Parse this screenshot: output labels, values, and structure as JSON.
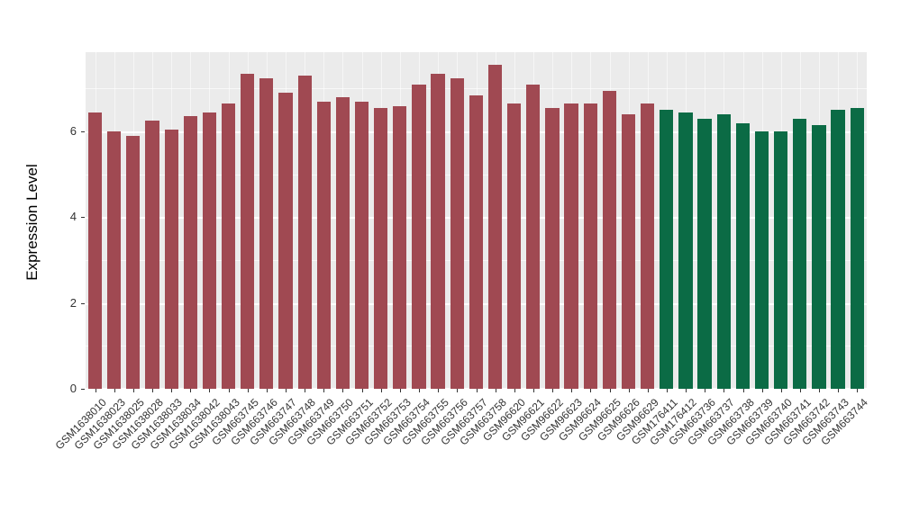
{
  "chart_data": {
    "type": "bar",
    "title": "",
    "ylabel": "Expression Level",
    "xlabel": "",
    "ylim": [
      0,
      7.85
    ],
    "yticks": [
      0,
      2,
      4,
      6
    ],
    "minor_yticks": [
      1,
      3,
      5,
      7
    ],
    "grid": "on",
    "legend_position": "none",
    "panel_background": "#EBEBEB",
    "gridline_color": "#ffffff",
    "axis_text_color": "#333333",
    "group_colors": [
      "#A04952",
      "#0B6B45"
    ],
    "group_sizes": [
      30,
      11
    ],
    "categories": [
      "GSM1638010",
      "GSM1638023",
      "GSM1638025",
      "GSM1638028",
      "GSM1638033",
      "GSM1638034",
      "GSM1638042",
      "GSM1638043",
      "GSM663745",
      "GSM663746",
      "GSM663747",
      "GSM663748",
      "GSM663749",
      "GSM663750",
      "GSM663751",
      "GSM663752",
      "GSM663753",
      "GSM663754",
      "GSM663755",
      "GSM663756",
      "GSM663757",
      "GSM663758",
      "GSM96620",
      "GSM96621",
      "GSM96622",
      "GSM96623",
      "GSM96624",
      "GSM96625",
      "GSM96626",
      "GSM96629",
      "GSM176411",
      "GSM176412",
      "GSM663736",
      "GSM663737",
      "GSM663738",
      "GSM663739",
      "GSM663740",
      "GSM663741",
      "GSM663742",
      "GSM663743",
      "GSM663744"
    ],
    "values": [
      6.45,
      6.0,
      5.9,
      6.25,
      6.05,
      6.35,
      6.45,
      6.65,
      7.35,
      7.25,
      6.9,
      7.3,
      6.7,
      6.8,
      6.7,
      6.55,
      6.6,
      7.1,
      7.35,
      7.25,
      6.85,
      7.55,
      6.65,
      7.1,
      6.55,
      6.65,
      6.65,
      6.95,
      6.4,
      6.65,
      6.5,
      6.45,
      6.3,
      6.4,
      6.2,
      6.0,
      6.0,
      6.3,
      6.15,
      6.5,
      6.55
    ]
  }
}
